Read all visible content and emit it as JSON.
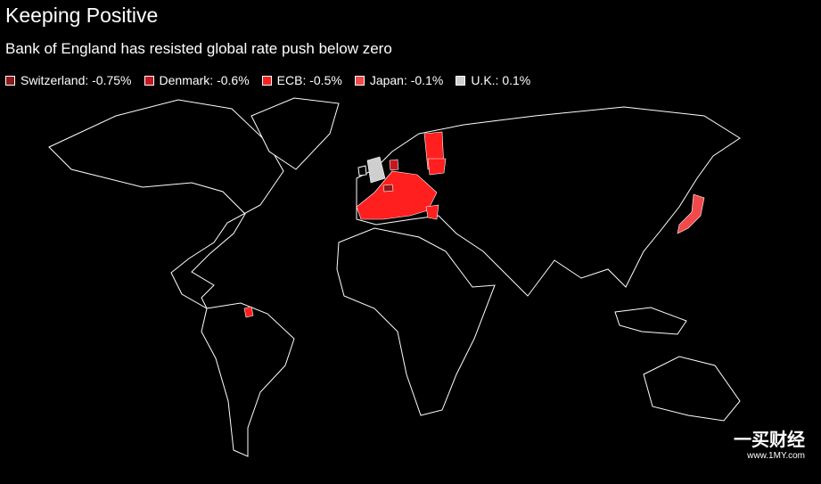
{
  "header": {
    "title": "Keeping Positive",
    "subtitle": "Bank of England has resisted global rate push below zero"
  },
  "legend": [
    {
      "label": "Switzerland: -0.75%",
      "color": "#8b1a1a"
    },
    {
      "label": "Denmark: -0.6%",
      "color": "#c8161d"
    },
    {
      "label": "ECB: -0.5%",
      "color": "#ff1f1f"
    },
    {
      "label": "Japan: -0.1%",
      "color": "#f24a4a"
    },
    {
      "label": "U.K.: 0.1%",
      "color": "#cfcfcf"
    }
  ],
  "watermark": {
    "brand": "一买财经",
    "url": "www.1MY.com"
  }
}
